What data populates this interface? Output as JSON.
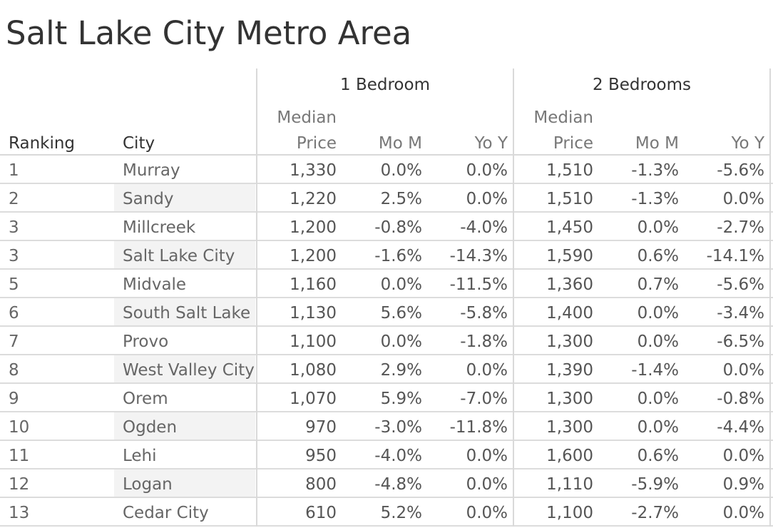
{
  "title": "Salt Lake City Metro Area",
  "headers": {
    "group_1": "1 Bedroom",
    "group_2": "2 Bedrooms",
    "ranking": "Ranking",
    "city": "City",
    "median": "Median",
    "price": "Price",
    "mom": "Mo M",
    "yoy": "Yo Y"
  },
  "chart_data": {
    "type": "table",
    "title": "Salt Lake City Metro Area",
    "columns": [
      "Ranking",
      "City",
      "1 Bedroom Median Price",
      "1 Bedroom Mo M",
      "1 Bedroom Yo Y",
      "2 Bedrooms Median Price",
      "2 Bedrooms Mo M",
      "2 Bedrooms Yo Y"
    ],
    "rows": [
      {
        "rank": "1",
        "city": "Murray",
        "price_1": "1,330",
        "mom_1": "0.0%",
        "yoy_1": "0.0%",
        "price_2": "1,510",
        "mom_2": "-1.3%",
        "yoy_2": "-5.6%"
      },
      {
        "rank": "2",
        "city": "Sandy",
        "price_1": "1,220",
        "mom_1": "2.5%",
        "yoy_1": "0.0%",
        "price_2": "1,510",
        "mom_2": "-1.3%",
        "yoy_2": "0.0%"
      },
      {
        "rank": "3",
        "city": "Millcreek",
        "price_1": "1,200",
        "mom_1": "-0.8%",
        "yoy_1": "-4.0%",
        "price_2": "1,450",
        "mom_2": "0.0%",
        "yoy_2": "-2.7%"
      },
      {
        "rank": "3",
        "city": "Salt Lake City",
        "price_1": "1,200",
        "mom_1": "-1.6%",
        "yoy_1": "-14.3%",
        "price_2": "1,590",
        "mom_2": "0.6%",
        "yoy_2": "-14.1%"
      },
      {
        "rank": "5",
        "city": "Midvale",
        "price_1": "1,160",
        "mom_1": "0.0%",
        "yoy_1": "-11.5%",
        "price_2": "1,360",
        "mom_2": "0.7%",
        "yoy_2": "-5.6%"
      },
      {
        "rank": "6",
        "city": "South Salt Lake",
        "price_1": "1,130",
        "mom_1": "5.6%",
        "yoy_1": "-5.8%",
        "price_2": "1,400",
        "mom_2": "0.0%",
        "yoy_2": "-3.4%"
      },
      {
        "rank": "7",
        "city": "Provo",
        "price_1": "1,100",
        "mom_1": "0.0%",
        "yoy_1": "-1.8%",
        "price_2": "1,300",
        "mom_2": "0.0%",
        "yoy_2": "-6.5%"
      },
      {
        "rank": "8",
        "city": "West Valley City",
        "price_1": "1,080",
        "mom_1": "2.9%",
        "yoy_1": "0.0%",
        "price_2": "1,390",
        "mom_2": "-1.4%",
        "yoy_2": "0.0%"
      },
      {
        "rank": "9",
        "city": "Orem",
        "price_1": "1,070",
        "mom_1": "5.9%",
        "yoy_1": "-7.0%",
        "price_2": "1,300",
        "mom_2": "0.0%",
        "yoy_2": "-0.8%"
      },
      {
        "rank": "10",
        "city": "Ogden",
        "price_1": "970",
        "mom_1": "-3.0%",
        "yoy_1": "-11.8%",
        "price_2": "1,300",
        "mom_2": "0.0%",
        "yoy_2": "-4.4%"
      },
      {
        "rank": "11",
        "city": "Lehi",
        "price_1": "950",
        "mom_1": "-4.0%",
        "yoy_1": "0.0%",
        "price_2": "1,600",
        "mom_2": "0.6%",
        "yoy_2": "0.0%"
      },
      {
        "rank": "12",
        "city": "Logan",
        "price_1": "800",
        "mom_1": "-4.8%",
        "yoy_1": "0.0%",
        "price_2": "1,110",
        "mom_2": "-5.9%",
        "yoy_2": "0.9%"
      },
      {
        "rank": "13",
        "city": "Cedar City",
        "price_1": "610",
        "mom_1": "5.2%",
        "yoy_1": "0.0%",
        "price_2": "1,100",
        "mom_2": "-2.7%",
        "yoy_2": "0.0%"
      }
    ]
  }
}
